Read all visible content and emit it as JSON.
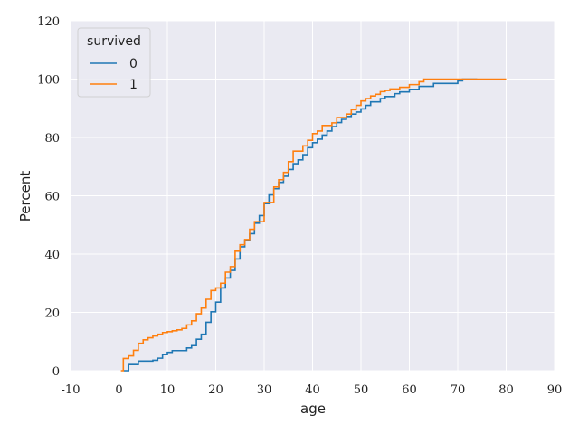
{
  "chart_data": {
    "type": "line",
    "title": "",
    "xlabel": "age",
    "ylabel": "Percent",
    "xlim": [
      -10,
      90
    ],
    "ylim": [
      0,
      120
    ],
    "x_ticks": [
      -10,
      0,
      10,
      20,
      30,
      40,
      50,
      60,
      70,
      80,
      90
    ],
    "y_ticks": [
      0,
      20,
      40,
      60,
      80,
      100,
      120
    ],
    "grid": true,
    "legend": {
      "title": "survived",
      "placement": "top-left"
    },
    "series": [
      {
        "name": "0",
        "color": "#1f77b4",
        "points": [
          [
            1,
            0
          ],
          [
            2,
            2.1
          ],
          [
            4,
            3.3
          ],
          [
            7,
            3.6
          ],
          [
            8,
            4.3
          ],
          [
            9,
            5.5
          ],
          [
            10,
            6.3
          ],
          [
            11,
            6.9
          ],
          [
            14,
            7.8
          ],
          [
            15,
            8.6
          ],
          [
            16,
            10.8
          ],
          [
            17,
            12.5
          ],
          [
            18,
            16.6
          ],
          [
            19,
            20.2
          ],
          [
            20,
            23.5
          ],
          [
            21,
            28.4
          ],
          [
            22,
            31.8
          ],
          [
            23,
            34.4
          ],
          [
            24,
            38.3
          ],
          [
            25,
            42.5
          ],
          [
            26,
            44.8
          ],
          [
            27,
            47.0
          ],
          [
            28,
            50.6
          ],
          [
            29,
            53.2
          ],
          [
            30,
            57.3
          ],
          [
            31,
            60.3
          ],
          [
            32,
            62.4
          ],
          [
            33,
            64.6
          ],
          [
            34,
            66.7
          ],
          [
            35,
            69.0
          ],
          [
            36,
            71.0
          ],
          [
            37,
            72.3
          ],
          [
            38,
            74.1
          ],
          [
            39,
            76.5
          ],
          [
            40,
            78.2
          ],
          [
            41,
            79.4
          ],
          [
            42,
            80.8
          ],
          [
            43,
            82.2
          ],
          [
            44,
            83.7
          ],
          [
            45,
            85.1
          ],
          [
            46,
            86.2
          ],
          [
            47,
            87.2
          ],
          [
            48,
            88.0
          ],
          [
            49,
            88.7
          ],
          [
            50,
            89.8
          ],
          [
            51,
            91.0
          ],
          [
            52,
            92.2
          ],
          [
            54,
            93.3
          ],
          [
            55,
            94.0
          ],
          [
            57,
            95.0
          ],
          [
            58,
            95.6
          ],
          [
            60,
            96.5
          ],
          [
            62,
            97.5
          ],
          [
            65,
            98.5
          ],
          [
            70,
            99.4
          ],
          [
            71,
            100
          ],
          [
            74,
            100
          ]
        ]
      },
      {
        "name": "1",
        "color": "#ff7f0e",
        "points": [
          [
            0.4,
            0
          ],
          [
            0.9,
            4.2
          ],
          [
            2,
            5.1
          ],
          [
            3,
            7.0
          ],
          [
            4,
            9.4
          ],
          [
            5,
            10.6
          ],
          [
            6,
            11.3
          ],
          [
            7,
            11.9
          ],
          [
            8,
            12.5
          ],
          [
            9,
            13.1
          ],
          [
            10,
            13.4
          ],
          [
            11,
            13.7
          ],
          [
            12,
            14.0
          ],
          [
            13,
            14.5
          ],
          [
            14,
            15.7
          ],
          [
            15,
            17.1
          ],
          [
            16,
            19.5
          ],
          [
            17,
            21.5
          ],
          [
            18,
            24.5
          ],
          [
            19,
            27.5
          ],
          [
            20,
            28.4
          ],
          [
            21,
            30.0
          ],
          [
            22,
            33.8
          ],
          [
            23,
            35.7
          ],
          [
            24,
            41.0
          ],
          [
            25,
            43.2
          ],
          [
            26,
            45.0
          ],
          [
            27,
            48.5
          ],
          [
            28,
            51.1
          ],
          [
            30,
            57.7
          ],
          [
            32,
            63.0
          ],
          [
            33,
            65.5
          ],
          [
            34,
            68.0
          ],
          [
            35,
            71.7
          ],
          [
            36,
            75.3
          ],
          [
            38,
            77.1
          ],
          [
            39,
            79.0
          ],
          [
            40,
            81.3
          ],
          [
            41,
            82.2
          ],
          [
            42,
            84.1
          ],
          [
            44,
            85.0
          ],
          [
            45,
            86.8
          ],
          [
            47,
            88.0
          ],
          [
            48,
            89.5
          ],
          [
            49,
            91.0
          ],
          [
            50,
            92.5
          ],
          [
            51,
            93.3
          ],
          [
            52,
            94.2
          ],
          [
            53,
            94.8
          ],
          [
            54,
            95.7
          ],
          [
            55,
            96.1
          ],
          [
            56,
            96.6
          ],
          [
            58,
            97.2
          ],
          [
            60,
            98.1
          ],
          [
            62,
            99.1
          ],
          [
            63,
            100
          ],
          [
            80,
            100
          ]
        ]
      }
    ]
  }
}
